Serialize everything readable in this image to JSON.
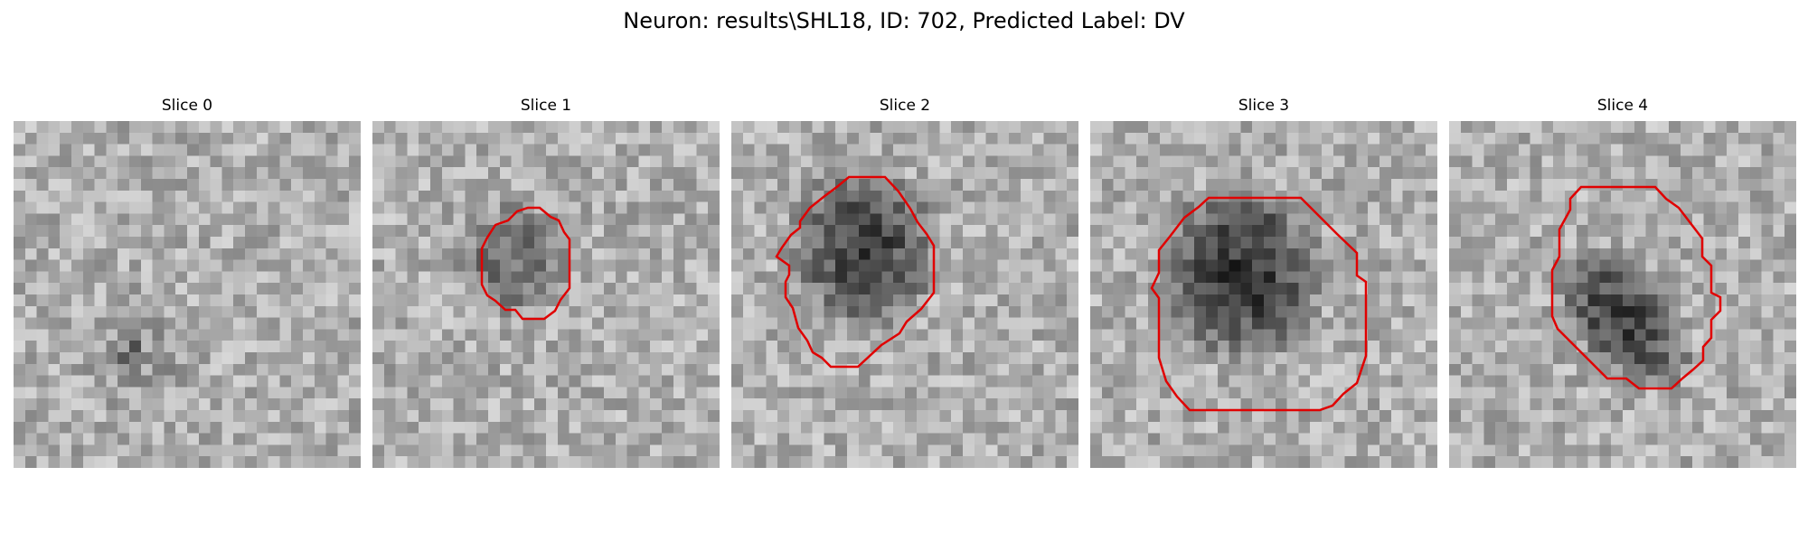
{
  "figure": {
    "title": "Neuron: results\\SHL18, ID: 702, Predicted Label: DV",
    "contour_color": "#e00000"
  },
  "panels": [
    {
      "title": "Slice 0",
      "has_contour": false,
      "cell_darkness": 0.12
    },
    {
      "title": "Slice 1",
      "has_contour": true,
      "cell_darkness": 0.45
    },
    {
      "title": "Slice 2",
      "has_contour": true,
      "cell_darkness": 0.72
    },
    {
      "title": "Slice 3",
      "has_contour": true,
      "cell_darkness": 0.82
    },
    {
      "title": "Slice 4",
      "has_contour": true,
      "cell_darkness": 0.75
    }
  ]
}
